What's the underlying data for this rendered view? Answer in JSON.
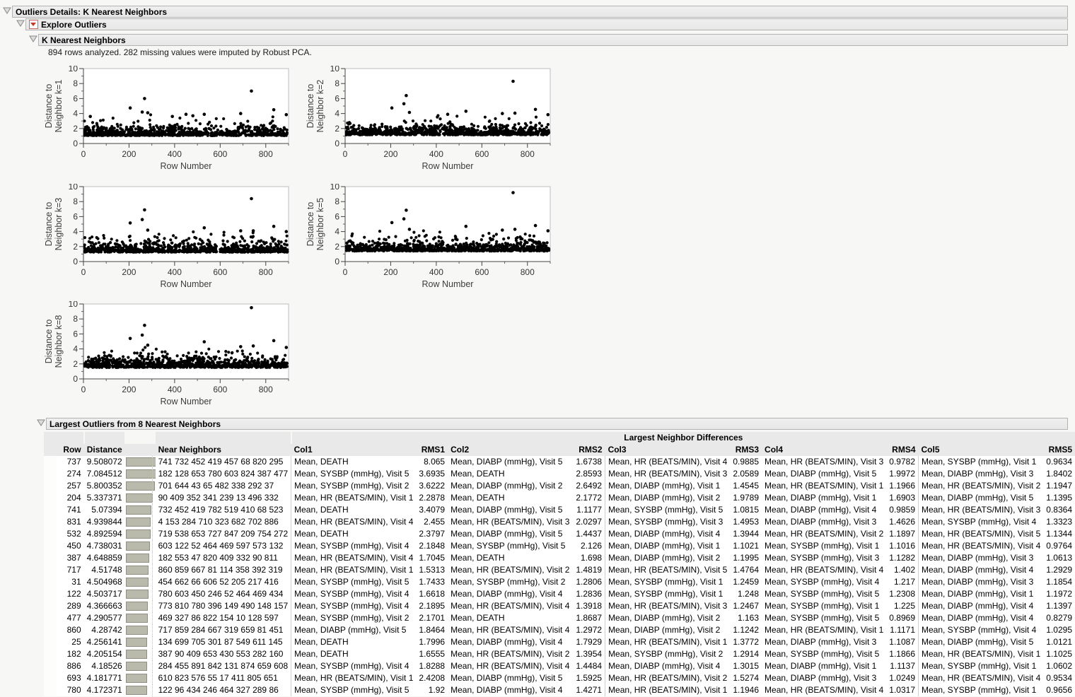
{
  "outline": {
    "level1_title": "Outliers Details: K Nearest Neighbors",
    "level2_title": "Explore Outliers",
    "level3_title": "K Nearest Neighbors",
    "analysis_note": "894 rows analyzed. 282 missing values were imputed by Robust PCA.",
    "table_section_title": "Largest Outliers from 8 Nearest Neighbors"
  },
  "icons": {
    "disclosure": "open-triangle",
    "red_menu": "red-triangle-menu"
  },
  "colors": {
    "page_bg": "#f7f7f6",
    "header_bg": "#e9e9e9",
    "header_border": "#b3b3b3",
    "bar_fill": "#b9b9ac",
    "bar_border": "#8f8f84",
    "point": "#000000",
    "menu_red": "#c0392b"
  },
  "chart_data": [
    {
      "type": "scatter",
      "k": 1,
      "ylabel_lines": [
        "Distance to",
        "Neighbor k=1"
      ],
      "xlabel": "Row Number",
      "xlim": [
        0,
        900
      ],
      "ylim": [
        0,
        10
      ],
      "x_ticks": [
        0,
        200,
        400,
        600,
        800
      ],
      "y_ticks": [
        0,
        2,
        4,
        6,
        8,
        10
      ],
      "n_points": 894,
      "band": {
        "min": 0.95,
        "spread": 0.42,
        "cap": 2.9
      },
      "seed": 11,
      "outliers": [
        [
          205,
          4.75
        ],
        [
          258,
          4.2
        ],
        [
          268,
          6.0
        ],
        [
          282,
          4.1
        ],
        [
          737,
          7.0
        ],
        [
          835,
          4.5
        ],
        [
          530,
          3.9
        ],
        [
          690,
          4.0
        ],
        [
          890,
          3.85
        ],
        [
          30,
          3.6
        ],
        [
          390,
          3.6
        ],
        [
          450,
          3.9
        ],
        [
          480,
          3.7
        ]
      ]
    },
    {
      "type": "scatter",
      "k": 2,
      "ylabel_lines": [
        "Distance to",
        "Neighbor k=2"
      ],
      "xlabel": "Row Number",
      "xlim": [
        0,
        900
      ],
      "ylim": [
        0,
        10
      ],
      "x_ticks": [
        0,
        200,
        400,
        600,
        800
      ],
      "y_ticks": [
        0,
        2,
        4,
        6,
        8,
        10
      ],
      "n_points": 894,
      "band": {
        "min": 1.05,
        "spread": 0.44,
        "cap": 2.9
      },
      "seed": 22,
      "outliers": [
        [
          205,
          4.75
        ],
        [
          258,
          5.3
        ],
        [
          268,
          6.4
        ],
        [
          282,
          4.15
        ],
        [
          737,
          8.3
        ],
        [
          835,
          4.55
        ],
        [
          530,
          4.3
        ],
        [
          690,
          4.0
        ],
        [
          745,
          4.05
        ],
        [
          890,
          3.85
        ],
        [
          450,
          3.9
        ]
      ]
    },
    {
      "type": "scatter",
      "k": 3,
      "ylabel_lines": [
        "Distance to",
        "Neighbor k=3"
      ],
      "xlabel": "Row Number",
      "xlim": [
        0,
        900
      ],
      "ylim": [
        0,
        10
      ],
      "x_ticks": [
        0,
        200,
        400,
        600,
        800
      ],
      "y_ticks": [
        0,
        2,
        4,
        6,
        8,
        10
      ],
      "n_points": 894,
      "band": {
        "min": 1.15,
        "spread": 0.46,
        "cap": 2.9
      },
      "seed": 33,
      "outliers": [
        [
          205,
          5.15
        ],
        [
          258,
          5.6
        ],
        [
          268,
          6.9
        ],
        [
          282,
          4.2
        ],
        [
          737,
          8.4
        ],
        [
          835,
          4.7
        ],
        [
          530,
          4.5
        ],
        [
          690,
          4.1
        ],
        [
          745,
          4.1
        ],
        [
          890,
          4.0
        ]
      ]
    },
    {
      "type": "scatter",
      "k": 5,
      "ylabel_lines": [
        "Distance to",
        "Neighbor k=5"
      ],
      "xlabel": "Row Number",
      "xlim": [
        0,
        900
      ],
      "ylim": [
        0,
        10
      ],
      "x_ticks": [
        0,
        200,
        400,
        600,
        800
      ],
      "y_ticks": [
        0,
        2,
        4,
        6,
        8,
        10
      ],
      "n_points": 894,
      "band": {
        "min": 1.3,
        "spread": 0.48,
        "cap": 2.9
      },
      "seed": 55,
      "outliers": [
        [
          205,
          5.2
        ],
        [
          258,
          5.7
        ],
        [
          268,
          6.85
        ],
        [
          282,
          4.3
        ],
        [
          737,
          9.2
        ],
        [
          835,
          4.8
        ],
        [
          530,
          4.7
        ],
        [
          690,
          4.2
        ],
        [
          745,
          4.3
        ],
        [
          890,
          4.1
        ]
      ]
    },
    {
      "type": "scatter",
      "k": 8,
      "ylabel_lines": [
        "Distance to",
        "Neighbor k=8"
      ],
      "xlabel": "Row Number",
      "xlim": [
        0,
        900
      ],
      "ylim": [
        0,
        10
      ],
      "x_ticks": [
        0,
        200,
        400,
        600,
        800
      ],
      "y_ticks": [
        0,
        2,
        4,
        6,
        8,
        10
      ],
      "n_points": 894,
      "band": {
        "min": 1.42,
        "spread": 0.5,
        "cap": 2.9
      },
      "seed": 88,
      "outliers": [
        [
          205,
          5.4
        ],
        [
          258,
          5.85
        ],
        [
          268,
          7.15
        ],
        [
          282,
          4.5
        ],
        [
          737,
          9.5
        ],
        [
          835,
          5.1
        ],
        [
          530,
          4.95
        ],
        [
          690,
          4.3
        ],
        [
          745,
          4.4
        ],
        [
          890,
          4.2
        ]
      ]
    }
  ],
  "table": {
    "span_header": "Largest Neighbor Differences",
    "columns": [
      "Row",
      "Distance",
      "",
      "Near Neighbors",
      "Col1",
      "RMS1",
      "Col2",
      "RMS2",
      "Col3",
      "RMS3",
      "Col4",
      "RMS4",
      "Col5",
      "RMS5"
    ],
    "max_distance": 9.508072,
    "rows": [
      [
        "737",
        "9.508072",
        "741 732 452 419 457 68 820 295",
        "Mean, DEATH",
        "8.065",
        "Mean, DIABP (mmHg), Visit 5",
        "1.6738",
        "Mean, HR (BEATS/MIN), Visit 4",
        "0.9885",
        "Mean, HR (BEATS/MIN), Visit 3",
        "0.9782",
        "Mean, SYSBP (mmHg), Visit 1",
        "0.9634"
      ],
      [
        "274",
        "7.084512",
        "182 128 653 780 603 824 387 477",
        "Mean, SYSBP (mmHg), Visit 5",
        "3.6935",
        "Mean, DEATH",
        "2.8593",
        "Mean, HR (BEATS/MIN), Visit 3",
        "2.0589",
        "Mean, DIABP (mmHg), Visit 5",
        "1.9972",
        "Mean, DIABP (mmHg), Visit 3",
        "1.8402"
      ],
      [
        "257",
        "5.800352",
        "701 644 43 65 482 338 292 37",
        "Mean, SYSBP (mmHg), Visit 2",
        "3.6222",
        "Mean, DIABP (mmHg), Visit 2",
        "2.6492",
        "Mean, DIABP (mmHg), Visit 1",
        "1.4545",
        "Mean, HR (BEATS/MIN), Visit 1",
        "1.1966",
        "Mean, HR (BEATS/MIN), Visit 2",
        "1.1947"
      ],
      [
        "204",
        "5.337371",
        "90 409 352 341 239 13 496 332",
        "Mean, HR (BEATS/MIN), Visit 1",
        "2.2878",
        "Mean, DEATH",
        "2.1772",
        "Mean, DIABP (mmHg), Visit 2",
        "1.9789",
        "Mean, DIABP (mmHg), Visit 1",
        "1.6903",
        "Mean, DIABP (mmHg), Visit 5",
        "1.1395"
      ],
      [
        "741",
        "5.07394",
        "732 452 419 782 519 410 68 523",
        "Mean, DEATH",
        "3.4079",
        "Mean, DIABP (mmHg), Visit 5",
        "1.1177",
        "Mean, SYSBP (mmHg), Visit 5",
        "1.0815",
        "Mean, DIABP (mmHg), Visit 4",
        "0.9859",
        "Mean, HR (BEATS/MIN), Visit 3",
        "0.8364"
      ],
      [
        "831",
        "4.939844",
        "4 153 284 710 323 682 702 886",
        "Mean, HR (BEATS/MIN), Visit 4",
        "2.455",
        "Mean, HR (BEATS/MIN), Visit 3",
        "2.0297",
        "Mean, SYSBP (mmHg), Visit 3",
        "1.4953",
        "Mean, DIABP (mmHg), Visit 3",
        "1.4626",
        "Mean, SYSBP (mmHg), Visit 4",
        "1.3323"
      ],
      [
        "532",
        "4.892594",
        "719 538 653 727 847 209 754 272",
        "Mean, DEATH",
        "2.3797",
        "Mean, DIABP (mmHg), Visit 5",
        "1.4437",
        "Mean, DIABP (mmHg), Visit 4",
        "1.3944",
        "Mean, HR (BEATS/MIN), Visit 2",
        "1.1897",
        "Mean, HR (BEATS/MIN), Visit 5",
        "1.1344"
      ],
      [
        "450",
        "4.738031",
        "603 122 52 464 469 597 573 132",
        "Mean, SYSBP (mmHg), Visit 4",
        "2.1848",
        "Mean, SYSBP (mmHg), Visit 5",
        "2.126",
        "Mean, DIABP (mmHg), Visit 1",
        "1.1021",
        "Mean, SYSBP (mmHg), Visit 1",
        "1.1016",
        "Mean, HR (BEATS/MIN), Visit 4",
        "0.9764"
      ],
      [
        "387",
        "4.648859",
        "182 553 47 820 409 332 90 811",
        "Mean, HR (BEATS/MIN), Visit 4",
        "1.7045",
        "Mean, DEATH",
        "1.698",
        "Mean, DIABP (mmHg), Visit 2",
        "1.1995",
        "Mean, SYSBP (mmHg), Visit 3",
        "1.1282",
        "Mean, DIABP (mmHg), Visit 3",
        "1.0613"
      ],
      [
        "717",
        "4.51748",
        "860 859 667 81 114 358 392 319",
        "Mean, HR (BEATS/MIN), Visit 1",
        "1.5313",
        "Mean, HR (BEATS/MIN), Visit 2",
        "1.4819",
        "Mean, HR (BEATS/MIN), Visit 5",
        "1.4764",
        "Mean, HR (BEATS/MIN), Visit 4",
        "1.402",
        "Mean, DIABP (mmHg), Visit 4",
        "1.2929"
      ],
      [
        "31",
        "4.504968",
        "454 662 66 606 52 205 217 416",
        "Mean, SYSBP (mmHg), Visit 5",
        "1.7433",
        "Mean, SYSBP (mmHg), Visit 2",
        "1.2806",
        "Mean, SYSBP (mmHg), Visit 1",
        "1.2459",
        "Mean, SYSBP (mmHg), Visit 4",
        "1.217",
        "Mean, DIABP (mmHg), Visit 3",
        "1.1854"
      ],
      [
        "122",
        "4.503717",
        "780 603 450 246 52 464 469 434",
        "Mean, SYSBP (mmHg), Visit 4",
        "1.6618",
        "Mean, DIABP (mmHg), Visit 4",
        "1.2836",
        "Mean, SYSBP (mmHg), Visit 1",
        "1.248",
        "Mean, SYSBP (mmHg), Visit 5",
        "1.2308",
        "Mean, DIABP (mmHg), Visit 1",
        "1.1972"
      ],
      [
        "289",
        "4.366663",
        "773 810 780 396 149 490 148 157",
        "Mean, SYSBP (mmHg), Visit 4",
        "2.1895",
        "Mean, HR (BEATS/MIN), Visit 4",
        "1.3918",
        "Mean, HR (BEATS/MIN), Visit 3",
        "1.2467",
        "Mean, SYSBP (mmHg), Visit 1",
        "1.225",
        "Mean, DIABP (mmHg), Visit 4",
        "1.1397"
      ],
      [
        "477",
        "4.290577",
        "469 327 86 822 154 10 128 597",
        "Mean, SYSBP (mmHg), Visit 2",
        "2.1701",
        "Mean, DEATH",
        "1.8687",
        "Mean, DIABP (mmHg), Visit 2",
        "1.163",
        "Mean, SYSBP (mmHg), Visit 5",
        "0.8969",
        "Mean, DIABP (mmHg), Visit 4",
        "0.8279"
      ],
      [
        "860",
        "4.28742",
        "717 859 284 667 319 659 81 451",
        "Mean, DIABP (mmHg), Visit 5",
        "1.8464",
        "Mean, HR (BEATS/MIN), Visit 4",
        "1.2972",
        "Mean, DIABP (mmHg), Visit 2",
        "1.1242",
        "Mean, HR (BEATS/MIN), Visit 1",
        "1.1171",
        "Mean, SYSBP (mmHg), Visit 4",
        "1.0295"
      ],
      [
        "25",
        "4.256141",
        "134 699 705 301 87 549 611 145",
        "Mean, DEATH",
        "1.7996",
        "Mean, DIABP (mmHg), Visit 4",
        "1.7929",
        "Mean, HR (BEATS/MIN), Visit 1",
        "1.3772",
        "Mean, DIABP (mmHg), Visit 3",
        "1.1087",
        "Mean, DIABP (mmHg), Visit 5",
        "1.0121"
      ],
      [
        "182",
        "4.205154",
        "387 90 409 653 430 553 282 160",
        "Mean, DEATH",
        "1.6555",
        "Mean, HR (BEATS/MIN), Visit 2",
        "1.3954",
        "Mean, SYSBP (mmHg), Visit 2",
        "1.2914",
        "Mean, SYSBP (mmHg), Visit 5",
        "1.1866",
        "Mean, HR (BEATS/MIN), Visit 1",
        "1.1025"
      ],
      [
        "886",
        "4.18526",
        "284 455 891 842 131 874 659 608",
        "Mean, SYSBP (mmHg), Visit 4",
        "1.8288",
        "Mean, HR (BEATS/MIN), Visit 4",
        "1.4484",
        "Mean, DIABP (mmHg), Visit 4",
        "1.3015",
        "Mean, DIABP (mmHg), Visit 1",
        "1.1137",
        "Mean, SYSBP (mmHg), Visit 1",
        "1.0602"
      ],
      [
        "693",
        "4.181771",
        "610 823 576 55 17 411 805 651",
        "Mean, HR (BEATS/MIN), Visit 1",
        "2.4208",
        "Mean, DIABP (mmHg), Visit 5",
        "1.5925",
        "Mean, HR (BEATS/MIN), Visit 2",
        "1.5274",
        "Mean, DIABP (mmHg), Visit 3",
        "1.0249",
        "Mean, HR (BEATS/MIN), Visit 4",
        "0.9534"
      ],
      [
        "780",
        "4.172371",
        "122 96 434 246 464 327 289 86",
        "Mean, SYSBP (mmHg), Visit 5",
        "1.92",
        "Mean, DIABP (mmHg), Visit 4",
        "1.4271",
        "Mean, HR (BEATS/MIN), Visit 1",
        "1.1946",
        "Mean, HR (BEATS/MIN), Visit 4",
        "1.0317",
        "Mean, SYSBP (mmHg), Visit 1",
        "0.9656"
      ]
    ]
  }
}
